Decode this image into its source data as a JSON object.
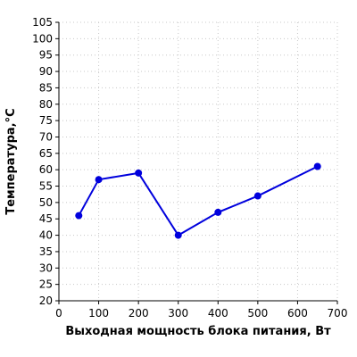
{
  "chart_data": {
    "type": "line",
    "title": "",
    "xlabel": "Выходная мощность блока питания, Вт",
    "ylabel": "Температура,°С",
    "xlim": [
      0,
      700
    ],
    "ylim": [
      20,
      105
    ],
    "x_ticks": [
      0,
      100,
      200,
      300,
      400,
      500,
      600,
      700
    ],
    "y_ticks": [
      20,
      25,
      30,
      35,
      40,
      45,
      50,
      55,
      60,
      65,
      70,
      75,
      80,
      85,
      90,
      95,
      100,
      105
    ],
    "grid": true,
    "series": [
      {
        "color": "#0000dd",
        "x": [
          50,
          100,
          200,
          300,
          400,
          500,
          650
        ],
        "y": [
          46,
          57,
          59,
          40,
          47,
          52,
          61
        ]
      }
    ]
  }
}
